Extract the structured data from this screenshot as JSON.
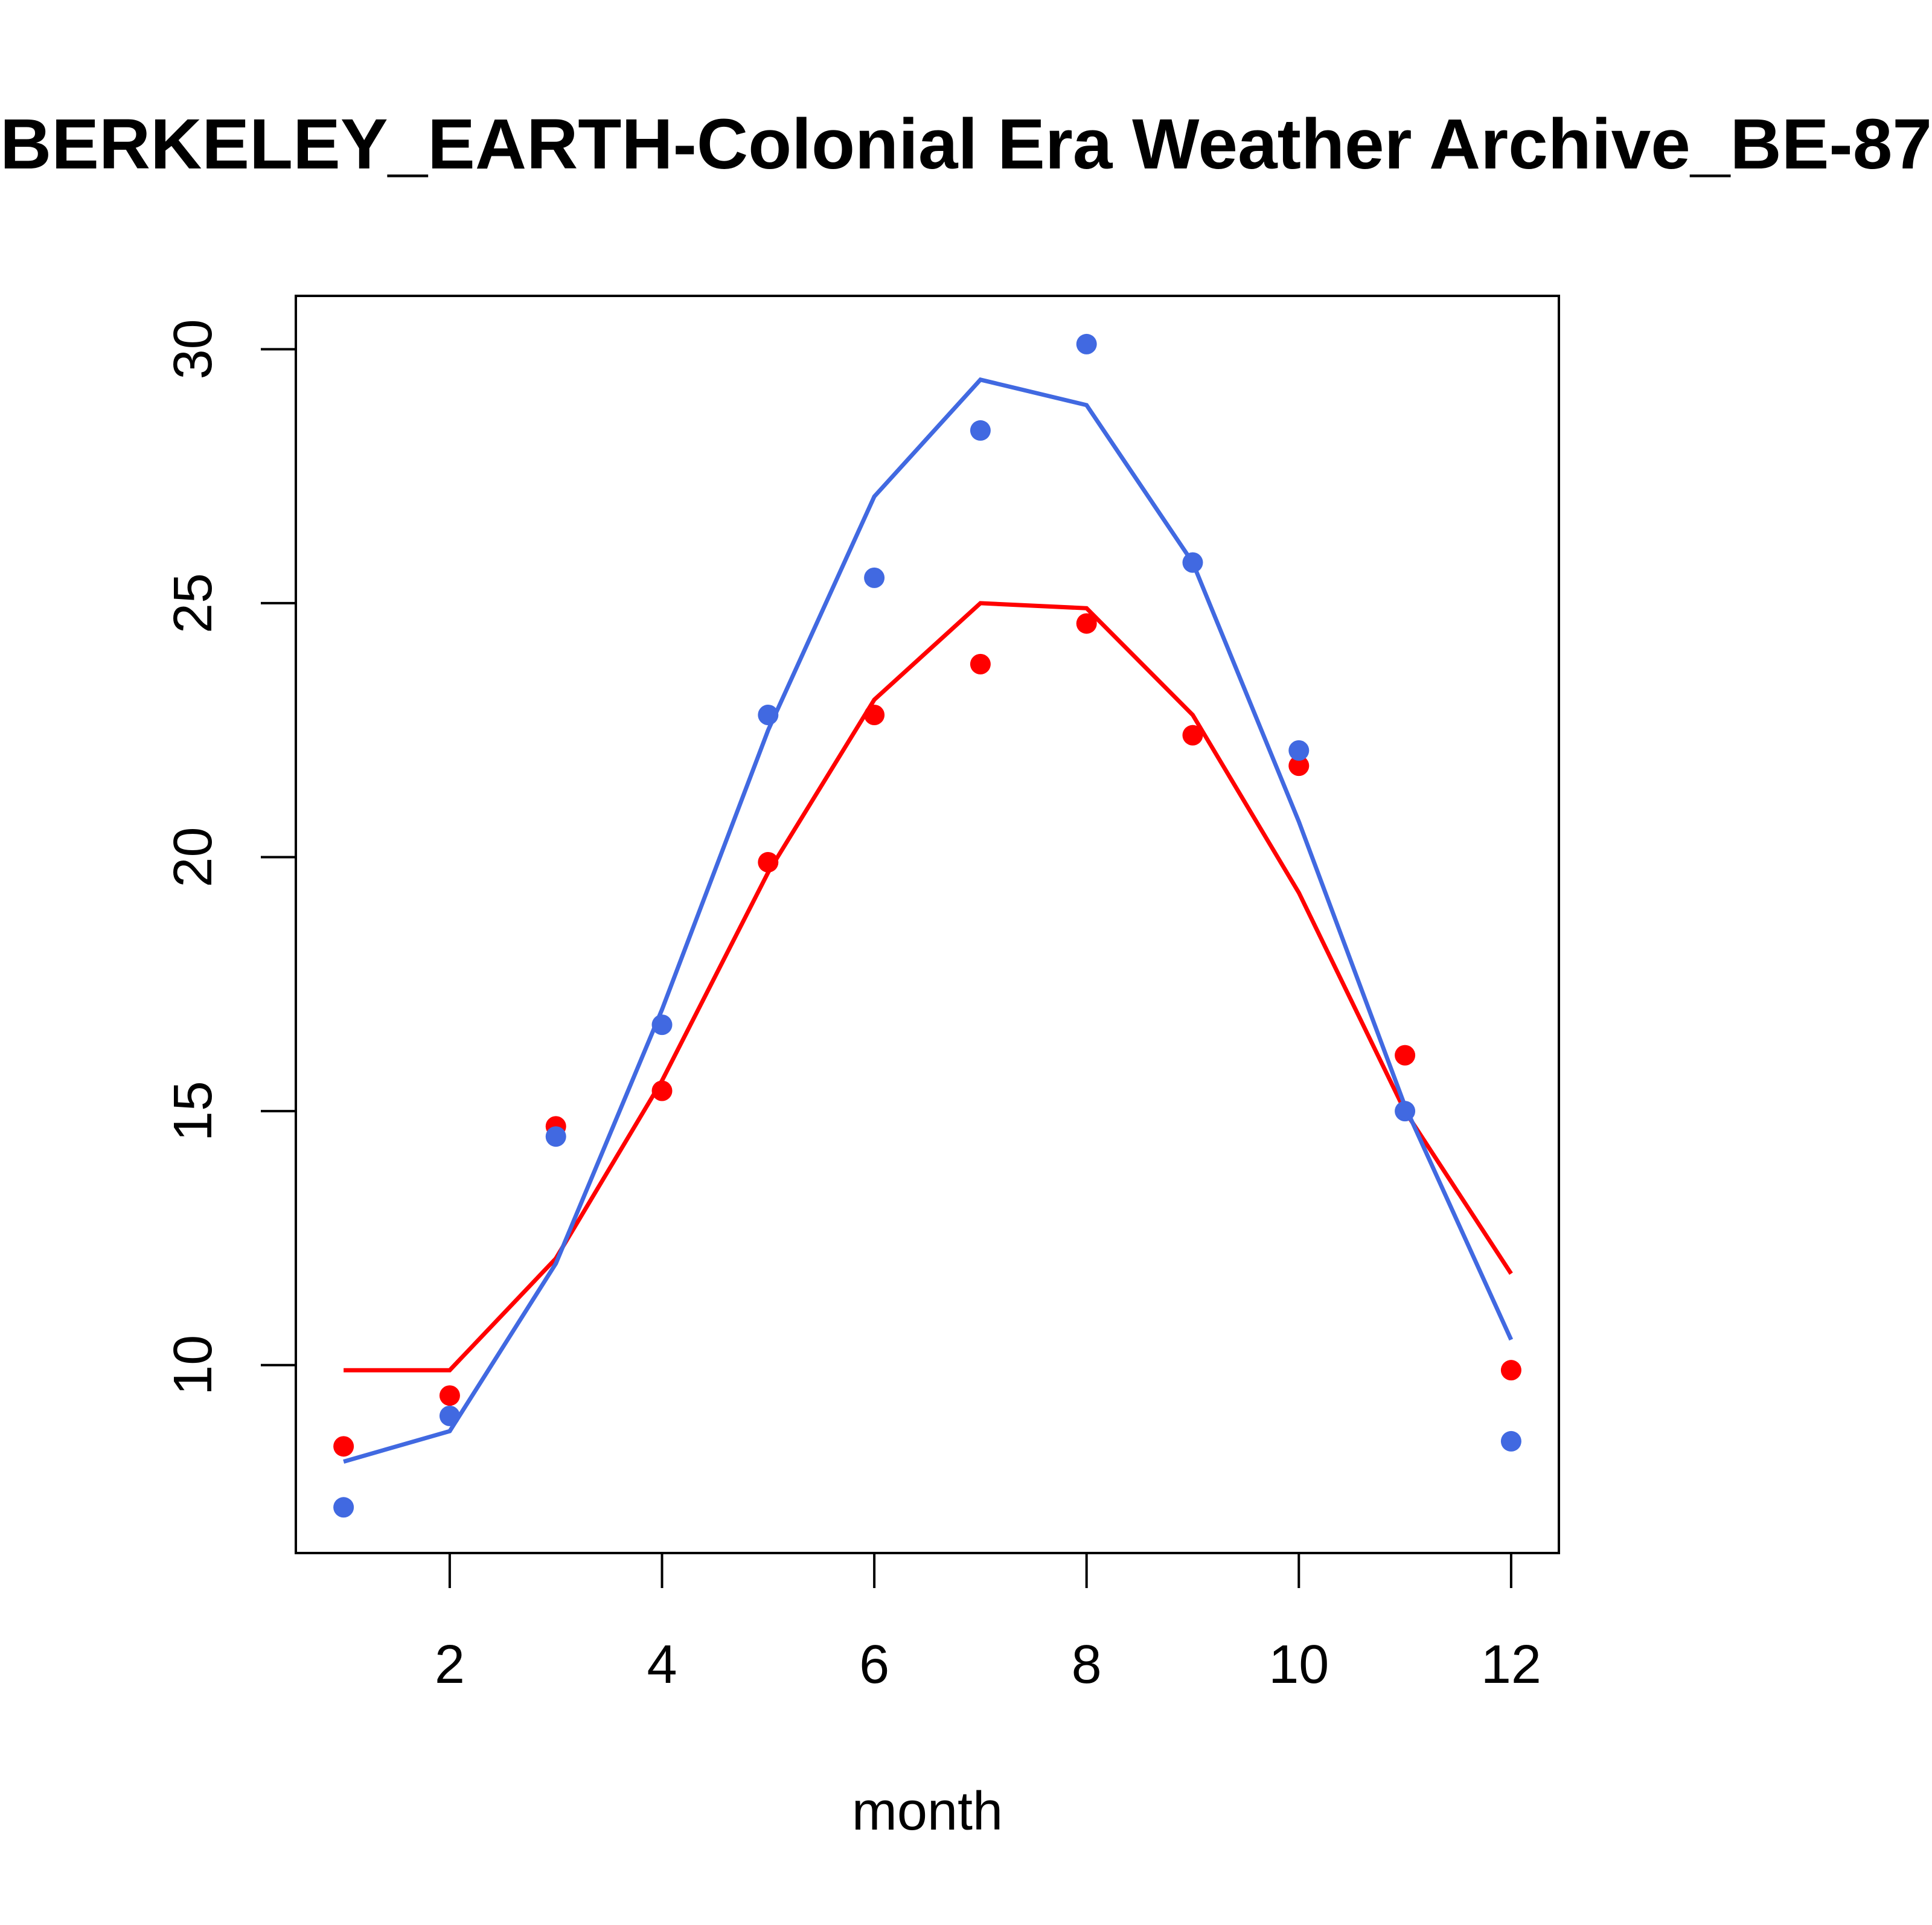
{
  "chart_data": {
    "type": "line",
    "title": "BERKELEY_EARTH-Colonial Era Weather Archive_BE-87",
    "xlabel": "month",
    "ylabel": "",
    "xlim": [
      0.55,
      12.45
    ],
    "ylim": [
      6.3,
      31.05
    ],
    "x_ticks": [
      2,
      4,
      6,
      8,
      10,
      12
    ],
    "y_ticks": [
      10,
      15,
      20,
      25,
      30
    ],
    "grid": false,
    "legend": "none",
    "x": [
      1,
      2,
      3,
      4,
      5,
      6,
      7,
      8,
      9,
      10,
      11,
      12
    ],
    "series": [
      {
        "color": "#ff0000",
        "points": [
          8.4,
          9.4,
          14.7,
          15.4,
          19.9,
          22.8,
          23.8,
          24.6,
          22.4,
          21.8,
          16.1,
          9.9
        ],
        "line": [
          9.9,
          9.9,
          12.1,
          15.6,
          19.7,
          23.1,
          25.0,
          24.9,
          22.8,
          19.3,
          15.0,
          11.8
        ]
      },
      {
        "color": "#4169e1",
        "points": [
          7.2,
          9.0,
          14.5,
          16.7,
          22.8,
          25.5,
          28.4,
          30.1,
          25.8,
          22.1,
          15.0,
          8.5
        ],
        "line": [
          8.1,
          8.7,
          12.0,
          17.0,
          22.5,
          27.1,
          29.4,
          28.9,
          25.8,
          20.7,
          15.1,
          10.5
        ]
      }
    ]
  }
}
